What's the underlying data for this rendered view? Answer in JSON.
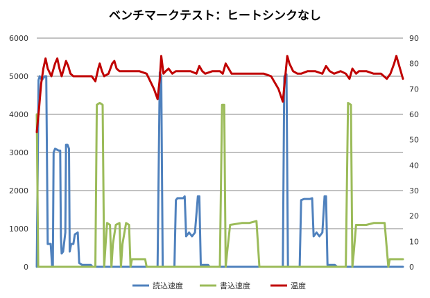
{
  "chart_data": {
    "type": "line",
    "title": "ベンチマークテスト：ヒートシンクなし",
    "xlabel": "",
    "ylabel": "",
    "y2label": "",
    "x_range": [
      0,
      1000
    ],
    "ylim": [
      0,
      6000
    ],
    "y_ticks": [
      0,
      1000,
      2000,
      3000,
      4000,
      5000,
      6000
    ],
    "y2lim": [
      0,
      90
    ],
    "y2_ticks": [
      0,
      10,
      20,
      30,
      40,
      50,
      60,
      70,
      80,
      90
    ],
    "grid": true,
    "legend_position": "bottom",
    "series": [
      {
        "name": "読込速度",
        "axis": "left",
        "color": "#4f81bd",
        "points": [
          [
            0,
            0
          ],
          [
            5,
            4900
          ],
          [
            8,
            5000
          ],
          [
            14,
            4900
          ],
          [
            18,
            4950
          ],
          [
            22,
            5000
          ],
          [
            26,
            5000
          ],
          [
            30,
            600
          ],
          [
            38,
            600
          ],
          [
            42,
            0
          ],
          [
            44,
            0
          ],
          [
            46,
            3000
          ],
          [
            50,
            3100
          ],
          [
            60,
            3050
          ],
          [
            64,
            3050
          ],
          [
            66,
            800
          ],
          [
            68,
            350
          ],
          [
            72,
            400
          ],
          [
            78,
            900
          ],
          [
            80,
            3200
          ],
          [
            84,
            3200
          ],
          [
            88,
            3100
          ],
          [
            90,
            400
          ],
          [
            94,
            600
          ],
          [
            100,
            600
          ],
          [
            104,
            850
          ],
          [
            112,
            900
          ],
          [
            116,
            100
          ],
          [
            124,
            50
          ],
          [
            140,
            50
          ],
          [
            148,
            50
          ],
          [
            152,
            0
          ],
          [
            330,
            0
          ],
          [
            336,
            5100
          ],
          [
            340,
            5000
          ],
          [
            344,
            0
          ],
          [
            376,
            0
          ],
          [
            380,
            1750
          ],
          [
            384,
            1800
          ],
          [
            400,
            1800
          ],
          [
            404,
            1850
          ],
          [
            408,
            800
          ],
          [
            416,
            900
          ],
          [
            424,
            800
          ],
          [
            432,
            900
          ],
          [
            440,
            1850
          ],
          [
            444,
            1850
          ],
          [
            448,
            50
          ],
          [
            456,
            50
          ],
          [
            468,
            50
          ],
          [
            472,
            0
          ],
          [
            672,
            0
          ],
          [
            676,
            5000
          ],
          [
            682,
            5050
          ],
          [
            686,
            0
          ],
          [
            718,
            0
          ],
          [
            722,
            1750
          ],
          [
            730,
            1780
          ],
          [
            746,
            1780
          ],
          [
            752,
            1800
          ],
          [
            756,
            800
          ],
          [
            764,
            900
          ],
          [
            772,
            800
          ],
          [
            780,
            900
          ],
          [
            786,
            1850
          ],
          [
            790,
            1850
          ],
          [
            794,
            50
          ],
          [
            802,
            50
          ],
          [
            814,
            50
          ],
          [
            820,
            0
          ],
          [
            1000,
            0
          ]
        ]
      },
      {
        "name": "書込速度",
        "axis": "left",
        "color": "#9bbb59",
        "points": [
          [
            0,
            4000
          ],
          [
            4,
            0
          ],
          [
            160,
            0
          ],
          [
            164,
            4250
          ],
          [
            172,
            4300
          ],
          [
            180,
            4250
          ],
          [
            184,
            0
          ],
          [
            188,
            600
          ],
          [
            192,
            1150
          ],
          [
            200,
            1100
          ],
          [
            204,
            0
          ],
          [
            208,
            600
          ],
          [
            216,
            1100
          ],
          [
            226,
            1150
          ],
          [
            230,
            0
          ],
          [
            234,
            600
          ],
          [
            244,
            1150
          ],
          [
            252,
            1100
          ],
          [
            256,
            0
          ],
          [
            260,
            200
          ],
          [
            268,
            200
          ],
          [
            290,
            200
          ],
          [
            296,
            200
          ],
          [
            300,
            0
          ],
          [
            500,
            0
          ],
          [
            506,
            4250
          ],
          [
            512,
            4250
          ],
          [
            516,
            0
          ],
          [
            520,
            400
          ],
          [
            528,
            1100
          ],
          [
            560,
            1150
          ],
          [
            580,
            1150
          ],
          [
            600,
            1200
          ],
          [
            608,
            0
          ],
          [
            844,
            0
          ],
          [
            850,
            4300
          ],
          [
            858,
            4250
          ],
          [
            862,
            0
          ],
          [
            866,
            400
          ],
          [
            872,
            1100
          ],
          [
            900,
            1100
          ],
          [
            920,
            1150
          ],
          [
            950,
            1150
          ],
          [
            960,
            0
          ],
          [
            964,
            200
          ],
          [
            980,
            200
          ],
          [
            1000,
            200
          ]
        ]
      },
      {
        "name": "温度",
        "axis": "right",
        "color": "#c00000",
        "points": [
          [
            0,
            53
          ],
          [
            6,
            62
          ],
          [
            12,
            72
          ],
          [
            18,
            78
          ],
          [
            24,
            82
          ],
          [
            30,
            78
          ],
          [
            40,
            75
          ],
          [
            50,
            80
          ],
          [
            56,
            82
          ],
          [
            62,
            78
          ],
          [
            68,
            75
          ],
          [
            74,
            78
          ],
          [
            80,
            81
          ],
          [
            86,
            79
          ],
          [
            92,
            76
          ],
          [
            100,
            75
          ],
          [
            110,
            75
          ],
          [
            130,
            75
          ],
          [
            150,
            75
          ],
          [
            160,
            73
          ],
          [
            168,
            78
          ],
          [
            172,
            80
          ],
          [
            178,
            77
          ],
          [
            184,
            75
          ],
          [
            196,
            76
          ],
          [
            206,
            80
          ],
          [
            212,
            81
          ],
          [
            218,
            78
          ],
          [
            226,
            77
          ],
          [
            240,
            77
          ],
          [
            280,
            77
          ],
          [
            300,
            76
          ],
          [
            310,
            73
          ],
          [
            320,
            70
          ],
          [
            330,
            66
          ],
          [
            336,
            74
          ],
          [
            340,
            83
          ],
          [
            346,
            76
          ],
          [
            352,
            77
          ],
          [
            360,
            78
          ],
          [
            370,
            76
          ],
          [
            380,
            77
          ],
          [
            400,
            77
          ],
          [
            420,
            77
          ],
          [
            436,
            76
          ],
          [
            444,
            79
          ],
          [
            452,
            77
          ],
          [
            460,
            76
          ],
          [
            480,
            77
          ],
          [
            500,
            77
          ],
          [
            508,
            76
          ],
          [
            516,
            80
          ],
          [
            524,
            78
          ],
          [
            532,
            76
          ],
          [
            540,
            76
          ],
          [
            560,
            76
          ],
          [
            580,
            76
          ],
          [
            600,
            76
          ],
          [
            620,
            76
          ],
          [
            640,
            75
          ],
          [
            660,
            70
          ],
          [
            672,
            65
          ],
          [
            678,
            74
          ],
          [
            684,
            83
          ],
          [
            690,
            80
          ],
          [
            700,
            77
          ],
          [
            712,
            76
          ],
          [
            722,
            76
          ],
          [
            740,
            77
          ],
          [
            760,
            77
          ],
          [
            780,
            76
          ],
          [
            790,
            79
          ],
          [
            800,
            77
          ],
          [
            812,
            76
          ],
          [
            830,
            77
          ],
          [
            844,
            76
          ],
          [
            854,
            74
          ],
          [
            862,
            78
          ],
          [
            872,
            76
          ],
          [
            880,
            77
          ],
          [
            900,
            77
          ],
          [
            920,
            76
          ],
          [
            940,
            76
          ],
          [
            956,
            74
          ],
          [
            966,
            76
          ],
          [
            976,
            80
          ],
          [
            982,
            83
          ],
          [
            990,
            79
          ],
          [
            1000,
            74
          ]
        ]
      }
    ]
  }
}
